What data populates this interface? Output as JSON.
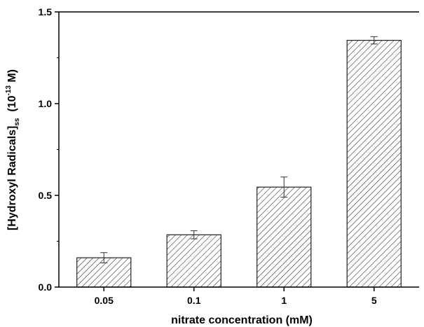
{
  "chart_data": {
    "type": "bar",
    "categories": [
      "0.05",
      "0.1",
      "1",
      "5"
    ],
    "values": [
      0.16,
      0.285,
      0.545,
      1.345
    ],
    "errors": [
      0.028,
      0.022,
      0.055,
      0.02
    ],
    "xlabel": "nitrate concentration (mM)",
    "ylabel": {
      "main": "[Hydroxyl Radicals]",
      "subscript": "ss",
      "unit_prefix": "(10",
      "exponent": "-13",
      "unit_suffix": " M)"
    },
    "ylim": [
      0,
      1.5
    ],
    "yticks": [
      "0.0",
      "0.5",
      "1.0",
      "1.5"
    ],
    "bar_fill": "diagonal-hatch",
    "grid": false,
    "legend": "none",
    "colors": {
      "bar_stroke": "#222222",
      "hatch": "#333333",
      "axis": "#000000",
      "background": "#ffffff"
    }
  }
}
